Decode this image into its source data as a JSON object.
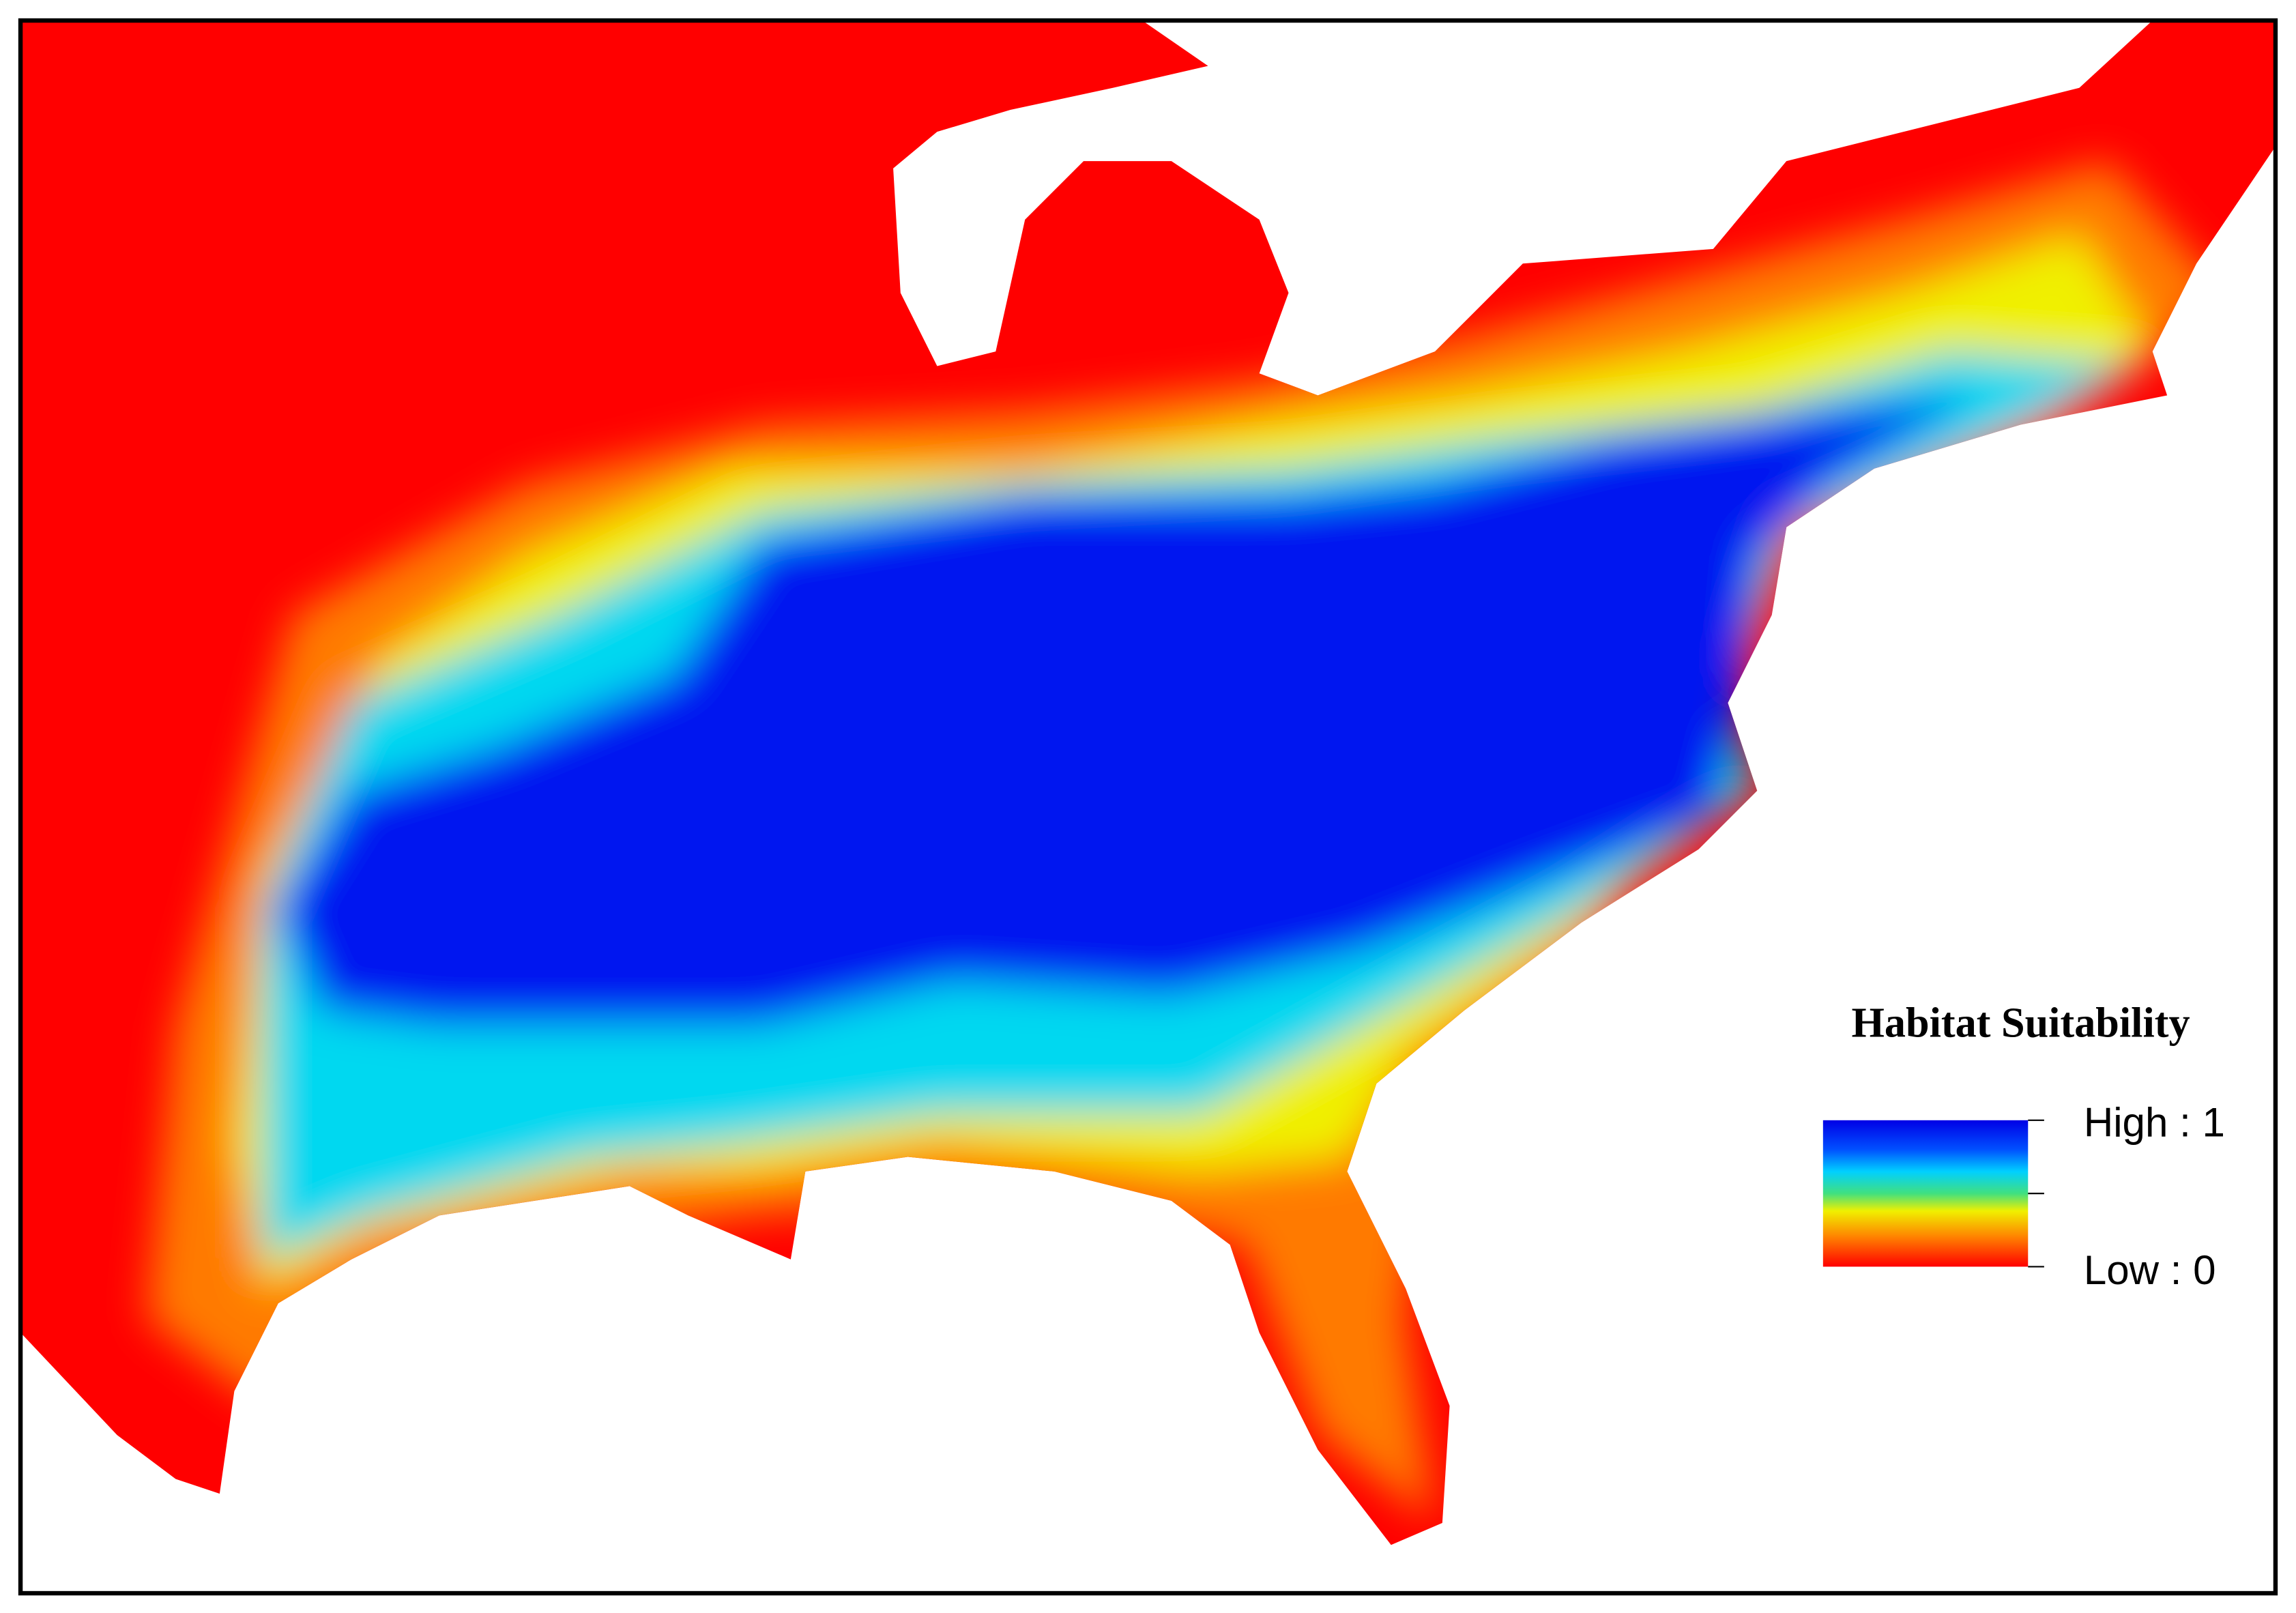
{
  "legend": {
    "title": "Habitat Suitability",
    "high_label": "High : 1",
    "low_label": "Low : 0"
  }
}
